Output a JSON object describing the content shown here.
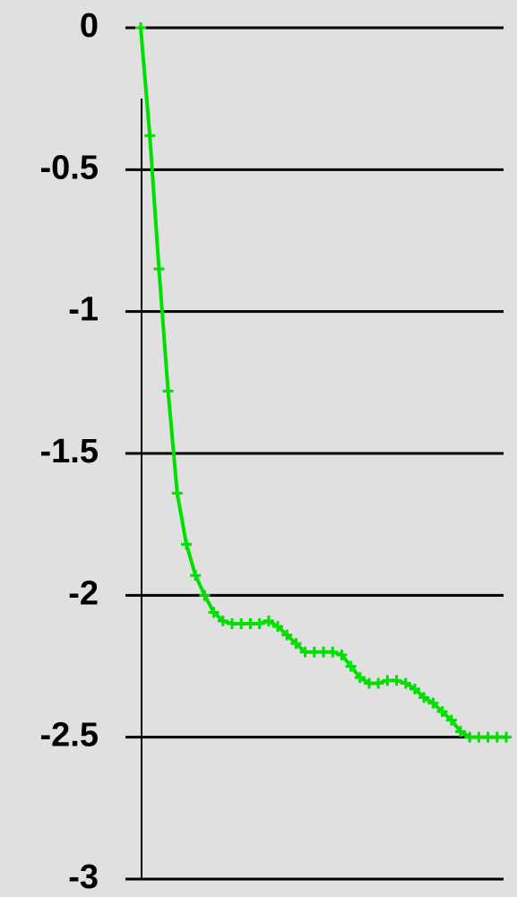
{
  "chart_data": {
    "type": "line",
    "categories": [
      null,
      null,
      null,
      null,
      null,
      null,
      null,
      null,
      null,
      null,
      null,
      null,
      null,
      null,
      null,
      null,
      null,
      null,
      null,
      null,
      null,
      null,
      null,
      null,
      null,
      null,
      null,
      null,
      null,
      null,
      null,
      null,
      null,
      null,
      null,
      null,
      null,
      null,
      null,
      null,
      null
    ],
    "series": [
      {
        "color": "#00e000",
        "values": [
          0,
          -0.38,
          -0.85,
          -1.28,
          -1.64,
          -1.82,
          -1.93,
          -2.0,
          -2.06,
          -2.09,
          -2.1,
          -2.1,
          -2.1,
          -2.1,
          -2.09,
          -2.11,
          -2.14,
          -2.17,
          -2.2,
          -2.2,
          -2.2,
          -2.2,
          -2.21,
          -2.25,
          -2.29,
          -2.31,
          -2.31,
          -2.3,
          -2.3,
          -2.31,
          -2.33,
          -2.36,
          -2.38,
          -2.41,
          -2.44,
          -2.48,
          -2.5,
          -2.5,
          -2.5,
          -2.5,
          -2.5
        ]
      }
    ],
    "ylim": [
      -3,
      0
    ],
    "yticks": [
      0,
      -0.5,
      -1,
      -1.5,
      -2,
      -2.5,
      -3
    ],
    "grid": true
  }
}
